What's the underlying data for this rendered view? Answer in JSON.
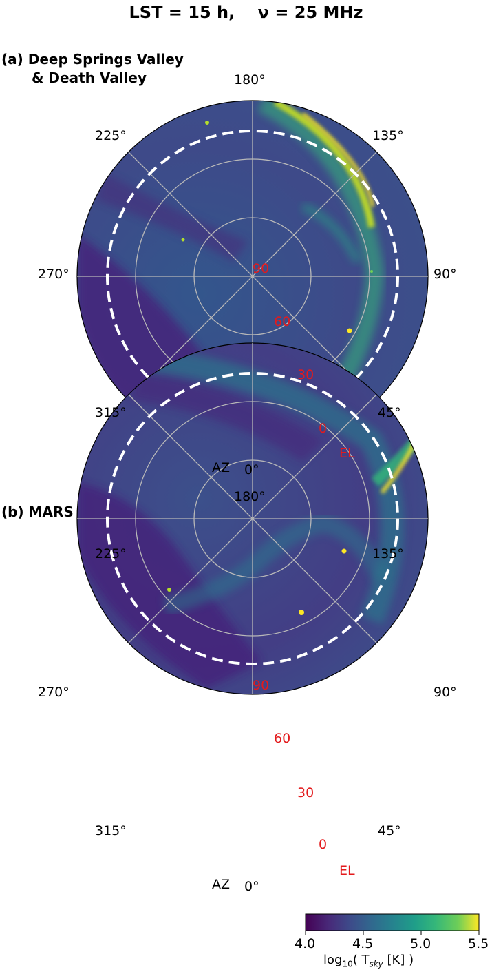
{
  "title": "LST = 15 h,    ν = 25 MHz",
  "panels": [
    {
      "label_line1": "(a) Deep Springs Valley",
      "label_line2": "& Death Valley",
      "az_ticks": [
        "180°",
        "135°",
        "90°",
        "45°",
        "0°",
        "315°",
        "270°",
        "225°"
      ],
      "el_ticks": [
        "90",
        "60",
        "30",
        "0"
      ],
      "az_axis_label": "AZ",
      "el_axis_label": "EL"
    },
    {
      "label_line1": "(b) MARS",
      "az_ticks": [
        "180°",
        "135°",
        "90°",
        "45°",
        "0°",
        "315°",
        "270°",
        "225°"
      ],
      "el_ticks": [
        "90",
        "60",
        "30",
        "0"
      ],
      "az_axis_label": "AZ",
      "el_axis_label": "EL"
    }
  ],
  "colorbar": {
    "ticks": [
      "4.0",
      "4.5",
      "5.0",
      "5.5"
    ],
    "label_pre": "log",
    "label_sub": "10",
    "label_mid": "( T",
    "label_sub2": "sky",
    "label_post": " [K] )",
    "range": [
      4.0,
      5.5
    ],
    "colormap": "viridis"
  },
  "chart_data": [
    {
      "type": "heatmap",
      "projection": "polar",
      "panel": "(a) Deep Springs Valley & Death Valley",
      "theta_ticks_deg": [
        180,
        135,
        90,
        45,
        0,
        315,
        270,
        225
      ],
      "r_ticks_elevation_deg": [
        90,
        60,
        30,
        0
      ],
      "horizon_dashed_circle_elevation_deg": 5,
      "color_range_log10_Tsky": [
        4.0,
        5.5
      ]
    },
    {
      "type": "heatmap",
      "projection": "polar",
      "panel": "(b) MARS",
      "theta_ticks_deg": [
        180,
        135,
        90,
        45,
        0,
        315,
        270,
        225
      ],
      "r_ticks_elevation_deg": [
        90,
        60,
        30,
        0
      ],
      "horizon_dashed_circle_elevation_deg": 5,
      "color_range_log10_Tsky": [
        4.0,
        5.5
      ]
    }
  ]
}
